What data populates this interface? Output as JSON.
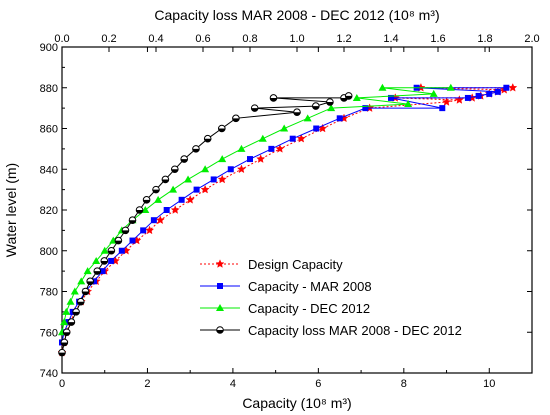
{
  "chart_data": {
    "type": "line",
    "title": "",
    "xlabel": "Capacity (10⁸ m³)",
    "x2label": "Capacity loss MAR 2008 - DEC 2012 (10⁸ m³)",
    "ylabel": "Water level (m)",
    "xlim": [
      0,
      11
    ],
    "x2lim": [
      0,
      2.0
    ],
    "ylim": [
      740,
      900
    ],
    "xticks": [
      "0",
      "2",
      "4",
      "6",
      "8",
      "10"
    ],
    "x2ticks": [
      "0.0",
      "0.2",
      "0.4",
      "0.6",
      "0.8",
      "1.0",
      "1.2",
      "1.4",
      "1.6",
      "1.8",
      "2.0"
    ],
    "yticks": [
      "740",
      "760",
      "780",
      "800",
      "820",
      "840",
      "860",
      "880",
      "900"
    ],
    "legend_position": "bottom-right",
    "grid": false,
    "series": [
      {
        "name": "Design Capacity",
        "axis": "bottom",
        "color": "#ff0000",
        "marker": "star",
        "line": "dotted",
        "points": [
          [
            0,
            750
          ],
          [
            0.05,
            755
          ],
          [
            0.1,
            760
          ],
          [
            0.2,
            765
          ],
          [
            0.3,
            770
          ],
          [
            0.45,
            775
          ],
          [
            0.6,
            780
          ],
          [
            0.8,
            785
          ],
          [
            1.0,
            790
          ],
          [
            1.25,
            795
          ],
          [
            1.5,
            800
          ],
          [
            1.75,
            805
          ],
          [
            2.05,
            810
          ],
          [
            2.3,
            815
          ],
          [
            2.65,
            820
          ],
          [
            3.0,
            825
          ],
          [
            3.35,
            830
          ],
          [
            3.75,
            835
          ],
          [
            4.2,
            840
          ],
          [
            4.65,
            845
          ],
          [
            5.1,
            850
          ],
          [
            5.6,
            855
          ],
          [
            6.1,
            860
          ],
          [
            6.6,
            865
          ],
          [
            7.2,
            870
          ],
          [
            7.8,
            875
          ],
          [
            8.4,
            880
          ],
          [
            9.0,
            873
          ],
          [
            9.3,
            874
          ],
          [
            9.6,
            875
          ],
          [
            9.8,
            876
          ],
          [
            10.0,
            877
          ],
          [
            10.2,
            878
          ],
          [
            10.35,
            879
          ],
          [
            10.55,
            880
          ]
        ]
      },
      {
        "name": "Capacity - MAR 2008",
        "axis": "bottom",
        "color": "#0000ff",
        "marker": "square",
        "line": "solid",
        "points": [
          [
            0,
            755
          ],
          [
            0.05,
            760
          ],
          [
            0.15,
            765
          ],
          [
            0.25,
            770
          ],
          [
            0.4,
            775
          ],
          [
            0.55,
            780
          ],
          [
            0.75,
            785
          ],
          [
            0.95,
            790
          ],
          [
            1.15,
            795
          ],
          [
            1.4,
            800
          ],
          [
            1.65,
            805
          ],
          [
            1.9,
            810
          ],
          [
            2.15,
            815
          ],
          [
            2.45,
            820
          ],
          [
            2.8,
            825
          ],
          [
            3.15,
            830
          ],
          [
            3.55,
            835
          ],
          [
            3.95,
            840
          ],
          [
            4.4,
            845
          ],
          [
            4.9,
            850
          ],
          [
            5.4,
            855
          ],
          [
            5.95,
            860
          ],
          [
            6.5,
            865
          ],
          [
            7.1,
            870
          ],
          [
            7.7,
            875
          ],
          [
            8.3,
            880
          ],
          [
            8.9,
            870
          ],
          [
            9.5,
            875
          ],
          [
            9.75,
            876
          ],
          [
            10.0,
            877
          ],
          [
            10.2,
            878
          ],
          [
            10.4,
            880
          ]
        ]
      },
      {
        "name": "Capacity - DEC 2012",
        "axis": "bottom",
        "color": "#00ee00",
        "marker": "triangle",
        "line": "solid",
        "points": [
          [
            0,
            760
          ],
          [
            0.05,
            765
          ],
          [
            0.1,
            770
          ],
          [
            0.2,
            775
          ],
          [
            0.3,
            780
          ],
          [
            0.45,
            785
          ],
          [
            0.6,
            790
          ],
          [
            0.8,
            795
          ],
          [
            1.0,
            800
          ],
          [
            1.2,
            805
          ],
          [
            1.4,
            810
          ],
          [
            1.65,
            815
          ],
          [
            1.95,
            820
          ],
          [
            2.25,
            825
          ],
          [
            2.6,
            830
          ],
          [
            2.95,
            835
          ],
          [
            3.35,
            840
          ],
          [
            3.75,
            845
          ],
          [
            4.2,
            850
          ],
          [
            4.7,
            855
          ],
          [
            5.2,
            860
          ],
          [
            5.75,
            865
          ],
          [
            6.3,
            870
          ],
          [
            6.9,
            875
          ],
          [
            7.5,
            880
          ],
          [
            8.1,
            872
          ],
          [
            8.7,
            877
          ],
          [
            9.1,
            880
          ]
        ]
      },
      {
        "name": "Capacity loss MAR 2008 - DEC 2012",
        "axis": "top",
        "color": "#000000",
        "marker": "half-circle",
        "line": "solid",
        "points": [
          [
            0.0,
            750
          ],
          [
            0.01,
            755
          ],
          [
            0.02,
            760
          ],
          [
            0.04,
            765
          ],
          [
            0.06,
            770
          ],
          [
            0.08,
            775
          ],
          [
            0.1,
            780
          ],
          [
            0.12,
            785
          ],
          [
            0.15,
            790
          ],
          [
            0.18,
            795
          ],
          [
            0.21,
            800
          ],
          [
            0.24,
            805
          ],
          [
            0.27,
            810
          ],
          [
            0.3,
            815
          ],
          [
            0.33,
            820
          ],
          [
            0.36,
            825
          ],
          [
            0.4,
            830
          ],
          [
            0.44,
            835
          ],
          [
            0.48,
            840
          ],
          [
            0.52,
            845
          ],
          [
            0.57,
            850
          ],
          [
            0.62,
            855
          ],
          [
            0.68,
            860
          ],
          [
            0.74,
            865
          ],
          [
            0.82,
            870
          ],
          [
            0.9,
            875
          ],
          [
            1.0,
            868
          ],
          [
            1.08,
            871
          ],
          [
            1.14,
            873
          ],
          [
            1.2,
            875
          ],
          [
            1.22,
            876
          ]
        ]
      }
    ]
  }
}
